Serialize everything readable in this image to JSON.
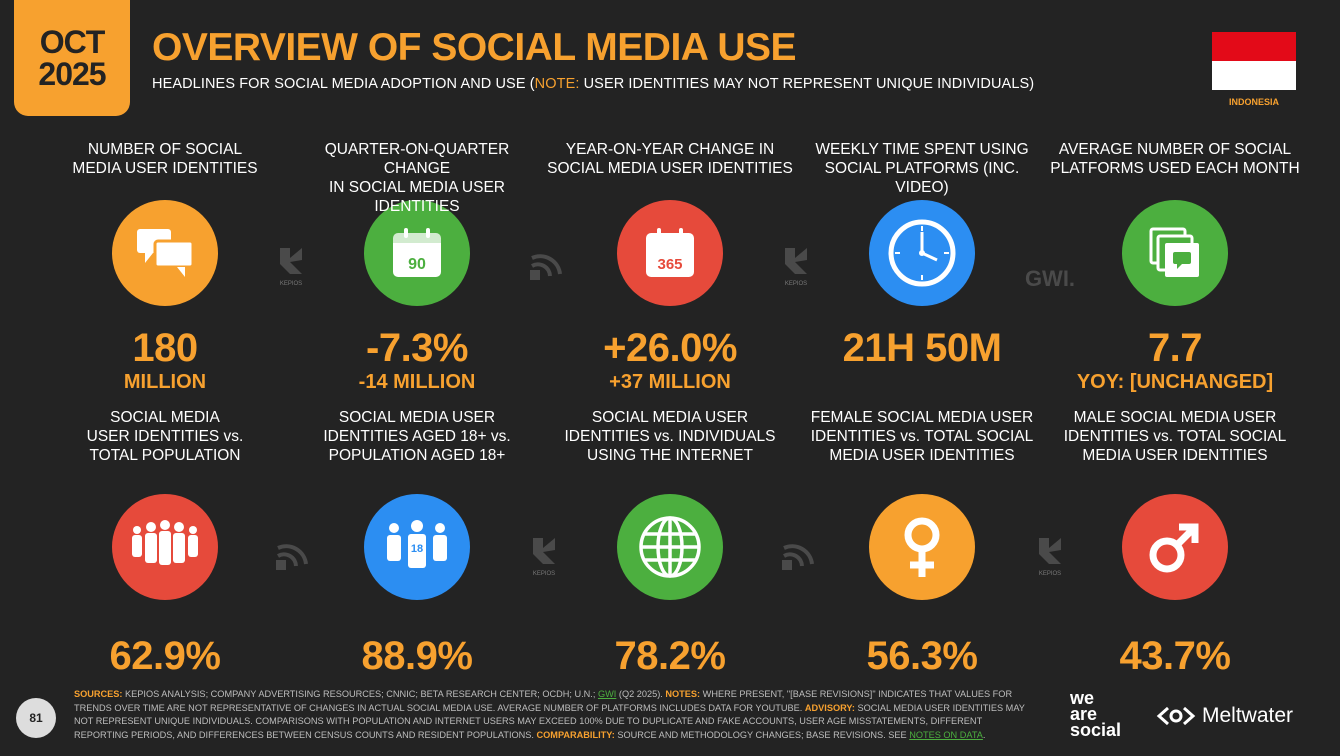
{
  "header": {
    "date_month": "OCT",
    "date_year": "2025",
    "title": "OVERVIEW OF SOCIAL MEDIA USE",
    "subtitle_pre": "HEADLINES FOR SOCIAL MEDIA ADOPTION AND USE (",
    "subtitle_note": "NOTE:",
    "subtitle_post": " USER IDENTITIES MAY NOT REPRESENT UNIQUE INDIVIDUALS)",
    "country": "INDONESIA"
  },
  "colors": {
    "accent": "#f7a12f",
    "green": "#4caf3f",
    "red": "#e64a3b",
    "blue": "#2c8ef2",
    "background": "#232323"
  },
  "row1": [
    {
      "label1": "NUMBER OF SOCIAL",
      "label2": "MEDIA USER IDENTITIES",
      "value": "180",
      "sub": "MILLION",
      "icon": "speech-bubbles-icon",
      "color": "orange"
    },
    {
      "label1": "QUARTER-ON-QUARTER CHANGE",
      "label2": "IN SOCIAL MEDIA USER IDENTITIES",
      "value": "-7.3%",
      "sub": "-14 MILLION",
      "icon": "calendar-90-icon",
      "icon_text": "90",
      "color": "green"
    },
    {
      "label1": "YEAR-ON-YEAR CHANGE IN",
      "label2": "SOCIAL MEDIA USER IDENTITIES",
      "value": "+26.0%",
      "sub": "+37 MILLION",
      "icon": "calendar-365-icon",
      "icon_text": "365",
      "color": "red"
    },
    {
      "label1": "WEEKLY TIME SPENT USING",
      "label2": "SOCIAL PLATFORMS (INC. VIDEO)",
      "value": "21H 50M",
      "sub": "",
      "icon": "clock-icon",
      "color": "blue"
    },
    {
      "label1": "AVERAGE NUMBER OF SOCIAL",
      "label2": "PLATFORMS USED EACH MONTH",
      "value": "7.7",
      "sub": "YOY: [UNCHANGED]",
      "icon": "stacked-windows-icon",
      "color": "green"
    }
  ],
  "row2": [
    {
      "label1": "SOCIAL MEDIA",
      "label2": "USER IDENTITIES vs.",
      "label3": "TOTAL POPULATION",
      "value": "62.9%",
      "icon": "crowd-icon",
      "color": "red"
    },
    {
      "label1": "SOCIAL MEDIA USER",
      "label2": "IDENTITIES AGED 18+ vs.",
      "label3": "POPULATION AGED 18+",
      "value": "88.9%",
      "icon": "adults-18-icon",
      "icon_text": "18",
      "color": "blue"
    },
    {
      "label1": "SOCIAL MEDIA USER",
      "label2": "IDENTITIES vs. INDIVIDUALS",
      "label3": "USING THE INTERNET",
      "value": "78.2%",
      "icon": "globe-icon",
      "color": "green"
    },
    {
      "label1": "FEMALE SOCIAL MEDIA USER",
      "label2": "IDENTITIES vs. TOTAL SOCIAL",
      "label3": "MEDIA USER IDENTITIES",
      "value": "56.3%",
      "icon": "female-symbol-icon",
      "color": "orange"
    },
    {
      "label1": "MALE SOCIAL MEDIA USER",
      "label2": "IDENTITIES vs. TOTAL SOCIAL",
      "label3": "MEDIA USER IDENTITIES",
      "value": "43.7%",
      "icon": "male-symbol-icon",
      "color": "red"
    }
  ],
  "source_logos": {
    "kepios": "KEPIOS",
    "gwi": "GWI."
  },
  "footer": {
    "page_number": "81",
    "sources_label": "SOURCES:",
    "sources_text": " KEPIOS ANALYSIS; COMPANY ADVERTISING RESOURCES; CNNIC; BETA RESEARCH CENTER; OCDH; U.N.; ",
    "gwi_link": "GWI",
    "sources_tail": " (Q2 2025). ",
    "notes_label": "NOTES:",
    "notes_text": " WHERE PRESENT, \"[BASE REVISIONS]\" INDICATES THAT VALUES FOR TRENDS OVER TIME ARE NOT REPRESENTATIVE OF CHANGES IN ACTUAL SOCIAL MEDIA USE. AVERAGE NUMBER OF PLATFORMS INCLUDES DATA FOR YOUTUBE. ",
    "advisory_label": "ADVISORY:",
    "advisory_text": " SOCIAL MEDIA USER IDENTITIES MAY NOT REPRESENT UNIQUE INDIVIDUALS. COMPARISONS WITH POPULATION AND INTERNET USERS MAY EXCEED 100% DUE TO DUPLICATE AND FAKE ACCOUNTS, USER AGE MISSTATEMENTS, DIFFERENT REPORTING PERIODS, AND DIFFERENCES BETWEEN CENSUS COUNTS AND RESIDENT POPULATIONS. ",
    "comparability_label": "COMPARABILITY:",
    "comparability_text": " SOURCE AND METHODOLOGY CHANGES; BASE REVISIONS. SEE ",
    "notes_link": "NOTES ON DATA",
    "end": ".",
    "brand1_line1": "we",
    "brand1_line2": "are",
    "brand1_line3": "social",
    "brand2": "Meltwater"
  }
}
